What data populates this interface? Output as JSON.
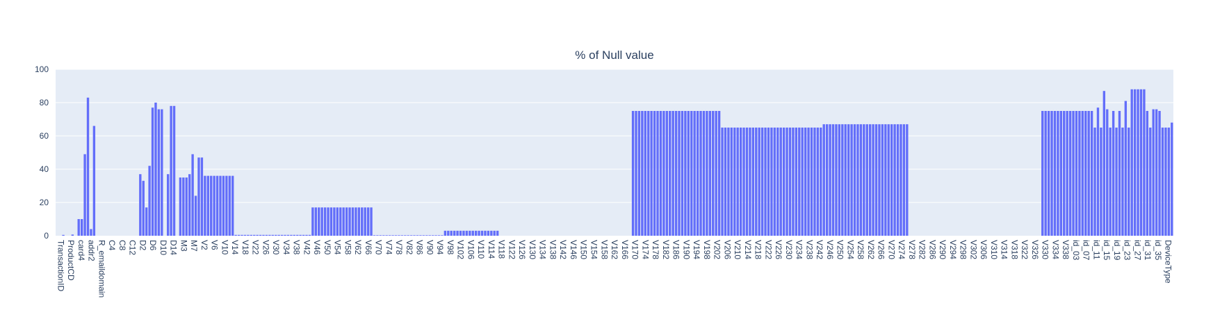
{
  "chart_data": {
    "type": "bar",
    "title": "% of Null value",
    "xlabel": "",
    "ylabel": "",
    "ylim": [
      0,
      100
    ],
    "yticks": [
      0,
      20,
      40,
      60,
      80,
      100
    ],
    "grid": true,
    "legend": "none",
    "bar_color": "#636efa",
    "plot_bg": "#e5ecf6",
    "series_segments": [
      {
        "count": 2,
        "value": 0
      },
      {
        "count": 1,
        "value": 0.5
      },
      {
        "count": 2,
        "value": 0
      },
      {
        "count": 1,
        "value": 0.7
      },
      {
        "count": 1,
        "value": 0
      },
      {
        "count": 2,
        "value": 10
      },
      {
        "count": 1,
        "value": 49
      },
      {
        "count": 1,
        "value": 83
      },
      {
        "count": 1,
        "value": 4
      },
      {
        "count": 1,
        "value": 66
      },
      {
        "count": 14,
        "value": 0
      },
      {
        "count": 1,
        "value": 37
      },
      {
        "count": 1,
        "value": 33
      },
      {
        "count": 1,
        "value": 17
      },
      {
        "count": 1,
        "value": 42
      },
      {
        "count": 1,
        "value": 77
      },
      {
        "count": 1,
        "value": 80
      },
      {
        "count": 2,
        "value": 76
      },
      {
        "count": 1,
        "value": 0
      },
      {
        "count": 1,
        "value": 37
      },
      {
        "count": 2,
        "value": 78
      },
      {
        "count": 1,
        "value": 0
      },
      {
        "count": 1,
        "value": 35
      },
      {
        "count": 2,
        "value": 35
      },
      {
        "count": 1,
        "value": 37
      },
      {
        "count": 1,
        "value": 49
      },
      {
        "count": 1,
        "value": 24
      },
      {
        "count": 2,
        "value": 47
      },
      {
        "count": 10,
        "value": 36
      },
      {
        "count": 25,
        "value": 0.5
      },
      {
        "count": 20,
        "value": 17
      },
      {
        "count": 23,
        "value": 0.3
      },
      {
        "count": 18,
        "value": 3
      },
      {
        "count": 43,
        "value": 0
      },
      {
        "count": 29,
        "value": 75
      },
      {
        "count": 33,
        "value": 65
      },
      {
        "count": 28,
        "value": 67
      },
      {
        "count": 43,
        "value": 0
      },
      {
        "count": 17,
        "value": 75
      },
      {
        "count": 1,
        "value": 65
      },
      {
        "count": 1,
        "value": 77
      },
      {
        "count": 1,
        "value": 65
      },
      {
        "count": 1,
        "value": 87
      },
      {
        "count": 1,
        "value": 76
      },
      {
        "count": 1,
        "value": 65
      },
      {
        "count": 1,
        "value": 75
      },
      {
        "count": 1,
        "value": 65
      },
      {
        "count": 1,
        "value": 75
      },
      {
        "count": 1,
        "value": 65
      },
      {
        "count": 1,
        "value": 81
      },
      {
        "count": 1,
        "value": 65
      },
      {
        "count": 5,
        "value": 88
      },
      {
        "count": 1,
        "value": 75
      },
      {
        "count": 1,
        "value": 65
      },
      {
        "count": 2,
        "value": 76
      },
      {
        "count": 1,
        "value": 75
      },
      {
        "count": 3,
        "value": 65
      },
      {
        "count": 1,
        "value": 68
      }
    ],
    "tick_labels": [
      "TransactionID",
      "ProductCD",
      "card4",
      "addr2",
      "R_emaildomain",
      "C4",
      "C8",
      "C12",
      "D2",
      "D6",
      "D10",
      "D14",
      "M3",
      "M7",
      "V2",
      "V6",
      "V10",
      "V14",
      "V18",
      "V22",
      "V26",
      "V30",
      "V34",
      "V38",
      "V42",
      "V46",
      "V50",
      "V54",
      "V58",
      "V62",
      "V66",
      "V70",
      "V74",
      "V78",
      "V82",
      "V86",
      "V90",
      "V94",
      "V98",
      "V102",
      "V106",
      "V110",
      "V114",
      "V118",
      "V122",
      "V126",
      "V130",
      "V134",
      "V138",
      "V142",
      "V146",
      "V150",
      "V154",
      "V158",
      "V162",
      "V166",
      "V170",
      "V174",
      "V178",
      "V182",
      "V186",
      "V190",
      "V194",
      "V198",
      "V202",
      "V206",
      "V210",
      "V214",
      "V218",
      "V222",
      "V226",
      "V230",
      "V234",
      "V238",
      "V242",
      "V246",
      "V250",
      "V254",
      "V258",
      "V262",
      "V266",
      "V270",
      "V274",
      "V278",
      "V282",
      "V286",
      "V290",
      "V294",
      "V298",
      "V302",
      "V306",
      "V310",
      "V314",
      "V318",
      "V322",
      "V326",
      "V330",
      "V334",
      "V338",
      "id_03",
      "id_07",
      "id_11",
      "id_15",
      "id_19",
      "id_23",
      "id_27",
      "id_31",
      "id_35",
      "DeviceType"
    ]
  }
}
